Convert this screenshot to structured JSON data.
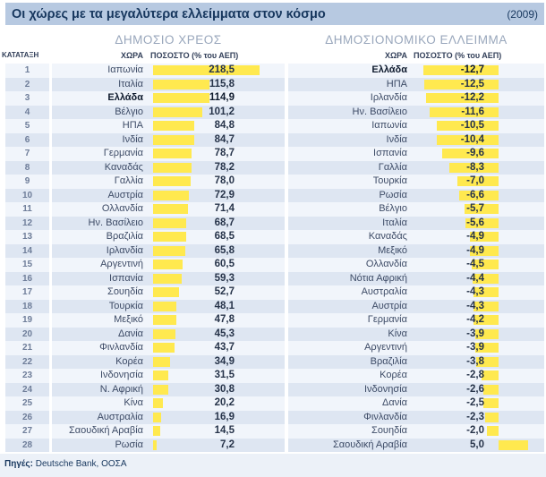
{
  "title": "Οι χώρες με τα μεγαλύτερα ελλείμματα στον κόσμο",
  "year_label": "(2009)",
  "rank_header": "ΚΑΤΑΤΑΞΗ",
  "sources_label": "Πηγές:",
  "sources_text": " Deutsche Bank, ΟΟΣΑ",
  "colors": {
    "bar_yellow": "#ffe94f",
    "title_bg": "#b7c9e1",
    "navy": "#17375e",
    "row_light": "#f1f5fb",
    "row_dark": "#dee6f2"
  },
  "left_table": {
    "section_title": "ΔΗΜΟΣΙΟ ΧΡΕΟΣ",
    "country_header": "ΧΩΡΑ",
    "value_header": "ΠΟΣΟΣΤΟ (% του ΑΕΠ)",
    "highlight_country": "Ελλάδα",
    "rows": [
      {
        "rank": "1",
        "country": "Ιαπωνία",
        "value": "218,5"
      },
      {
        "rank": "2",
        "country": "Ιταλία",
        "value": "115,8"
      },
      {
        "rank": "3",
        "country": "Ελλάδα",
        "value": "114,9"
      },
      {
        "rank": "4",
        "country": "Βέλγιο",
        "value": "101,2"
      },
      {
        "rank": "5",
        "country": "ΗΠΑ",
        "value": "84,8"
      },
      {
        "rank": "6",
        "country": "Ινδία",
        "value": "84,7"
      },
      {
        "rank": "7",
        "country": "Γερμανία",
        "value": "78,7"
      },
      {
        "rank": "8",
        "country": "Καναδάς",
        "value": "78,2"
      },
      {
        "rank": "9",
        "country": "Γαλλία",
        "value": "78,0"
      },
      {
        "rank": "10",
        "country": "Αυστρία",
        "value": "72,9"
      },
      {
        "rank": "11",
        "country": "Ολλανδία",
        "value": "71,4"
      },
      {
        "rank": "12",
        "country": "Ην. Βασίλειο",
        "value": "68,7"
      },
      {
        "rank": "13",
        "country": "Βραζιλία",
        "value": "68,5"
      },
      {
        "rank": "14",
        "country": "Ιρλανδία",
        "value": "65,8"
      },
      {
        "rank": "15",
        "country": "Αργεντινή",
        "value": "60,5"
      },
      {
        "rank": "16",
        "country": "Ισπανία",
        "value": "59,3"
      },
      {
        "rank": "17",
        "country": "Σουηδία",
        "value": "52,7"
      },
      {
        "rank": "18",
        "country": "Τουρκία",
        "value": "48,1"
      },
      {
        "rank": "19",
        "country": "Μεξικό",
        "value": "47,8"
      },
      {
        "rank": "20",
        "country": "Δανία",
        "value": "45,3"
      },
      {
        "rank": "21",
        "country": "Φινλανδία",
        "value": "43,7"
      },
      {
        "rank": "22",
        "country": "Κορέα",
        "value": "34,9"
      },
      {
        "rank": "23",
        "country": "Ινδονησία",
        "value": "31,5"
      },
      {
        "rank": "24",
        "country": "Ν. Αφρική",
        "value": "30,8"
      },
      {
        "rank": "25",
        "country": "Κίνα",
        "value": "20,2"
      },
      {
        "rank": "26",
        "country": "Αυστραλία",
        "value": "16,9"
      },
      {
        "rank": "27",
        "country": "Σαουδική Αραβία",
        "value": "14,5"
      },
      {
        "rank": "28",
        "country": "Ρωσία",
        "value": "7,2"
      }
    ]
  },
  "right_table": {
    "section_title": "ΔΗΜΟΣΙΟΝΟΜΙΚΟ ΕΛΛΕΙΜΜΑ",
    "country_header": "ΧΩΡΑ",
    "value_header": "ΠΟΣΟΣΤΟ (% του ΑΕΠ)",
    "highlight_country": "Ελλάδα",
    "rows": [
      {
        "country": "Ελλάδα",
        "value": "-12,7"
      },
      {
        "country": "ΗΠΑ",
        "value": "-12,5"
      },
      {
        "country": "Ιρλανδία",
        "value": "-12,2"
      },
      {
        "country": "Ην. Βασίλειο",
        "value": "-11,6"
      },
      {
        "country": "Ιαπωνία",
        "value": "-10,5"
      },
      {
        "country": "Ινδία",
        "value": "-10,4"
      },
      {
        "country": "Ισπανία",
        "value": "-9,6"
      },
      {
        "country": "Γαλλία",
        "value": "-8,3"
      },
      {
        "country": "Τουρκία",
        "value": "-7,0"
      },
      {
        "country": "Ρωσία",
        "value": "-6,6"
      },
      {
        "country": "Βέλγιο",
        "value": "-5,7"
      },
      {
        "country": "Ιταλία",
        "value": "-5,6"
      },
      {
        "country": "Καναδάς",
        "value": "-4,9"
      },
      {
        "country": "Μεξικό",
        "value": "-4,9"
      },
      {
        "country": "Ολλανδία",
        "value": "-4,5"
      },
      {
        "country": "Νότια Αφρική",
        "value": "-4,4"
      },
      {
        "country": "Αυστραλία",
        "value": "-4,3"
      },
      {
        "country": "Αυστρία",
        "value": "-4,3"
      },
      {
        "country": "Γερμανία",
        "value": "-4,2"
      },
      {
        "country": "Κίνα",
        "value": "-3,9"
      },
      {
        "country": "Αργεντινή",
        "value": "-3,9"
      },
      {
        "country": "Βραζιλία",
        "value": "-3,8"
      },
      {
        "country": "Κορέα",
        "value": "-2,8"
      },
      {
        "country": "Ινδονησία",
        "value": "-2,6"
      },
      {
        "country": "Δανία",
        "value": "-2,5"
      },
      {
        "country": "Φινλανδία",
        "value": "-2,3"
      },
      {
        "country": "Σουηδία",
        "value": "-2,0"
      },
      {
        "country": "Σαουδική Αραβία",
        "value": "5,0"
      }
    ]
  },
  "chart_data": [
    {
      "type": "bar",
      "orientation": "horizontal",
      "title": "ΔΗΜΟΣΙΟ ΧΡΕΟΣ",
      "xlabel": "ΠΟΣΟΣΤΟ (% του ΑΕΠ)",
      "xlim": [
        0,
        220
      ],
      "grid": false,
      "categories": [
        "Ιαπωνία",
        "Ιταλία",
        "Ελλάδα",
        "Βέλγιο",
        "ΗΠΑ",
        "Ινδία",
        "Γερμανία",
        "Καναδάς",
        "Γαλλία",
        "Αυστρία",
        "Ολλανδία",
        "Ην. Βασίλειο",
        "Βραζιλία",
        "Ιρλανδία",
        "Αργεντινή",
        "Ισπανία",
        "Σουηδία",
        "Τουρκία",
        "Μεξικό",
        "Δανία",
        "Φινλανδία",
        "Κορέα",
        "Ινδονησία",
        "Ν. Αφρική",
        "Κίνα",
        "Αυστραλία",
        "Σαουδική Αραβία",
        "Ρωσία"
      ],
      "values": [
        218.5,
        115.8,
        114.9,
        101.2,
        84.8,
        84.7,
        78.7,
        78.2,
        78.0,
        72.9,
        71.4,
        68.7,
        68.5,
        65.8,
        60.5,
        59.3,
        52.7,
        48.1,
        47.8,
        45.3,
        43.7,
        34.9,
        31.5,
        30.8,
        20.2,
        16.9,
        14.5,
        7.2
      ]
    },
    {
      "type": "bar",
      "orientation": "horizontal",
      "title": "ΔΗΜΟΣΙΟΝΟΜΙΚΟ ΕΛΛΕΙΜΜΑ",
      "xlabel": "ΠΟΣΟΣΤΟ (% του ΑΕΠ)",
      "xlim": [
        -13,
        8
      ],
      "grid": false,
      "categories": [
        "Ελλάδα",
        "ΗΠΑ",
        "Ιρλανδία",
        "Ην. Βασίλειο",
        "Ιαπωνία",
        "Ινδία",
        "Ισπανία",
        "Γαλλία",
        "Τουρκία",
        "Ρωσία",
        "Βέλγιο",
        "Ιταλία",
        "Καναδάς",
        "Μεξικό",
        "Ολλανδία",
        "Νότια Αφρική",
        "Αυστραλία",
        "Αυστρία",
        "Γερμανία",
        "Κίνα",
        "Αργεντινή",
        "Βραζιλία",
        "Κορέα",
        "Ινδονησία",
        "Δανία",
        "Φινλανδία",
        "Σουηδία",
        "Σαουδική Αραβία"
      ],
      "values": [
        -12.7,
        -12.5,
        -12.2,
        -11.6,
        -10.5,
        -10.4,
        -9.6,
        -8.3,
        -7.0,
        -6.6,
        -5.7,
        -5.6,
        -4.9,
        -4.9,
        -4.5,
        -4.4,
        -4.3,
        -4.3,
        -4.2,
        -3.9,
        -3.9,
        -3.8,
        -2.8,
        -2.6,
        -2.5,
        -2.3,
        -2.0,
        5.0
      ]
    }
  ]
}
